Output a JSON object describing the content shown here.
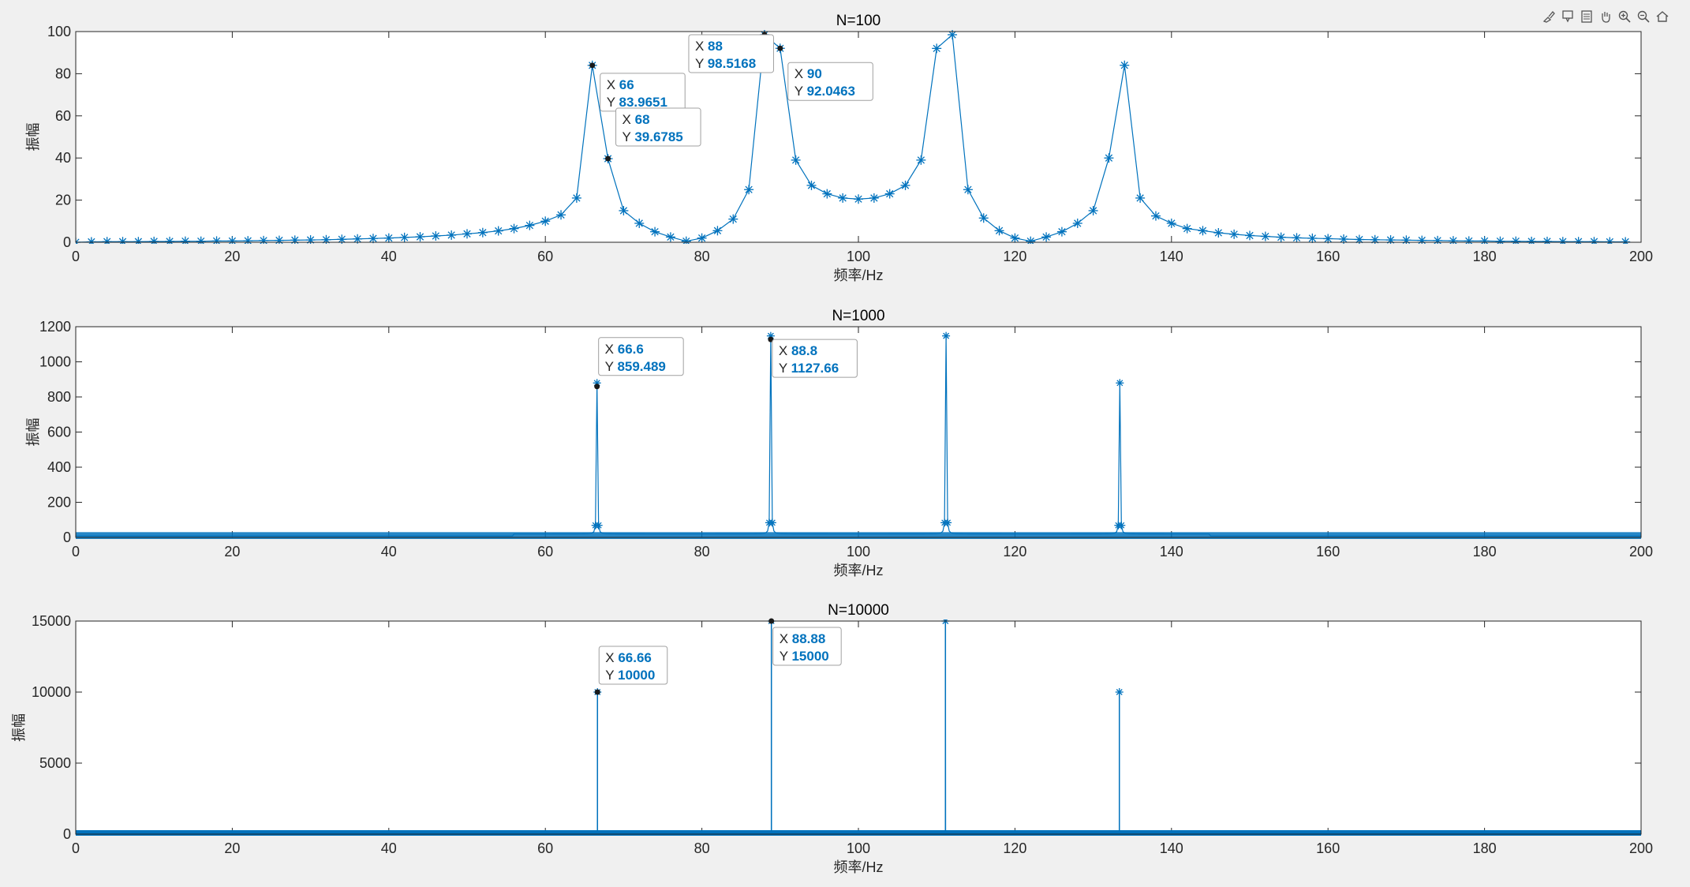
{
  "toolbar": [
    {
      "name": "brush-icon"
    },
    {
      "name": "data-tip-icon"
    },
    {
      "name": "legend-icon"
    },
    {
      "name": "pan-icon"
    },
    {
      "name": "zoom-in-icon"
    },
    {
      "name": "zoom-out-icon"
    },
    {
      "name": "home-icon"
    }
  ],
  "colors": {
    "series": "#0072bd",
    "axes": "#262626",
    "grid": "#dcdcdc",
    "background": "#ffffff"
  },
  "chart_data": [
    {
      "type": "line",
      "marker": "asterisk",
      "title": "N=100",
      "xlabel": "频率/Hz",
      "ylabel": "振幅",
      "xlim": [
        0,
        200
      ],
      "ylim": [
        0,
        100
      ],
      "xticks": [
        "0",
        "20",
        "40",
        "60",
        "80",
        "100",
        "120",
        "140",
        "160",
        "180",
        "200"
      ],
      "yticks": [
        "0",
        "20",
        "40",
        "60",
        "80",
        "100"
      ],
      "x": [
        0,
        2,
        4,
        6,
        8,
        10,
        12,
        14,
        16,
        18,
        20,
        22,
        24,
        26,
        28,
        30,
        32,
        34,
        36,
        38,
        40,
        42,
        44,
        46,
        48,
        50,
        52,
        54,
        56,
        58,
        60,
        62,
        64,
        66,
        68,
        70,
        72,
        74,
        76,
        78,
        80,
        82,
        84,
        86,
        88,
        90,
        92,
        94,
        96,
        98,
        100,
        102,
        104,
        106,
        108,
        110,
        112,
        114,
        116,
        118,
        120,
        122,
        124,
        126,
        128,
        130,
        132,
        134,
        136,
        138,
        140,
        142,
        144,
        146,
        148,
        150,
        152,
        154,
        156,
        158,
        160,
        162,
        164,
        166,
        168,
        170,
        172,
        174,
        176,
        178,
        180,
        182,
        184,
        186,
        188,
        190,
        192,
        194,
        196,
        198
      ],
      "values": [
        0,
        0.2,
        0.3,
        0.3,
        0.3,
        0.4,
        0.4,
        0.5,
        0.5,
        0.6,
        0.6,
        0.7,
        0.8,
        0.9,
        1,
        1.1,
        1.2,
        1.4,
        1.6,
        1.8,
        2,
        2.3,
        2.6,
        3,
        3.4,
        4,
        4.6,
        5.4,
        6.5,
        8,
        10,
        13,
        21,
        83.9651,
        39.6785,
        15,
        9,
        5,
        2.5,
        0.5,
        2,
        5.5,
        11,
        25,
        98.5168,
        92.0463,
        39,
        27,
        23,
        21,
        20.5,
        21,
        23,
        27,
        39,
        92,
        98.5,
        25,
        11.5,
        5.5,
        2,
        0.5,
        2.5,
        5,
        9,
        15,
        40,
        84,
        21,
        12.5,
        9,
        6.5,
        5.5,
        4.5,
        3.8,
        3.2,
        2.8,
        2.4,
        2.1,
        1.9,
        1.7,
        1.5,
        1.3,
        1.2,
        1.1,
        1,
        0.9,
        0.8,
        0.7,
        0.6,
        0.6,
        0.5,
        0.5,
        0.4,
        0.4,
        0.3,
        0.3,
        0.3,
        0.2,
        0.2
      ],
      "datatips": [
        {
          "x_label": "X",
          "x": "66",
          "y_label": "Y",
          "y": "83.9651"
        },
        {
          "x_label": "X",
          "x": "68",
          "y_label": "Y",
          "y": "39.6785"
        },
        {
          "x_label": "X",
          "x": "88",
          "y_label": "Y",
          "y": "98.5168"
        },
        {
          "x_label": "X",
          "x": "90",
          "y_label": "Y",
          "y": "92.0463"
        }
      ]
    },
    {
      "type": "line",
      "marker": "asterisk",
      "title": "N=1000",
      "xlabel": "频率/Hz",
      "ylabel": "振幅",
      "xlim": [
        0,
        200
      ],
      "ylim": [
        0,
        1200
      ],
      "xticks": [
        "0",
        "20",
        "40",
        "60",
        "80",
        "100",
        "120",
        "140",
        "160",
        "180",
        "200"
      ],
      "yticks": [
        "0",
        "200",
        "400",
        "600",
        "800",
        "1000",
        "1200"
      ],
      "resolution": 0.2,
      "peaks": [
        {
          "x": 66.6,
          "y": 859.489
        },
        {
          "x": 88.8,
          "y": 1127.66
        },
        {
          "x": 111.2,
          "y": 1127.66
        },
        {
          "x": 133.4,
          "y": 859.489
        }
      ],
      "datatips": [
        {
          "x_label": "X",
          "x": "66.6",
          "y_label": "Y",
          "y": "859.489"
        },
        {
          "x_label": "X",
          "x": "88.8",
          "y_label": "Y",
          "y": "1127.66"
        }
      ]
    },
    {
      "type": "line",
      "marker": "asterisk",
      "title": "N=10000",
      "xlabel": "频率/Hz",
      "ylabel": "振幅",
      "xlim": [
        0,
        200
      ],
      "ylim": [
        0,
        15000
      ],
      "xticks": [
        "0",
        "20",
        "40",
        "60",
        "80",
        "100",
        "120",
        "140",
        "160",
        "180",
        "200"
      ],
      "yticks": [
        "0",
        "5000",
        "10000",
        "15000"
      ],
      "peaks": [
        {
          "x": 66.66,
          "y": 10000
        },
        {
          "x": 88.88,
          "y": 15000
        },
        {
          "x": 111.12,
          "y": 15000
        },
        {
          "x": 133.34,
          "y": 10000
        }
      ],
      "datatips": [
        {
          "x_label": "X",
          "x": "66.66",
          "y_label": "Y",
          "y": "10000"
        },
        {
          "x_label": "X",
          "x": "88.88",
          "y_label": "Y",
          "y": "15000"
        }
      ]
    }
  ]
}
